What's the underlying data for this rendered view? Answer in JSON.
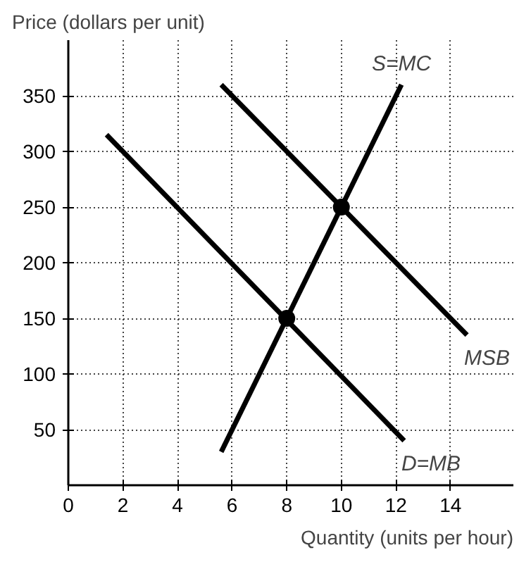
{
  "chart_data": {
    "type": "line",
    "xlabel": "Quantity (units per hour)",
    "ylabel": "Price (dollars per unit)",
    "xlim": [
      0,
      16.3
    ],
    "ylim": [
      0,
      400
    ],
    "xticks": [
      0,
      2,
      4,
      6,
      8,
      10,
      12,
      14
    ],
    "yticks": [
      50,
      100,
      150,
      200,
      250,
      300,
      350
    ],
    "grid": true,
    "line_style": "solid",
    "marker": "none",
    "series": [
      {
        "name": "S=MC",
        "color": "#000000",
        "x": [
          5.6,
          12.2
        ],
        "values": [
          30,
          360
        ]
      },
      {
        "name": "MSB",
        "color": "#000000",
        "x": [
          5.6,
          14.6
        ],
        "values": [
          360,
          135
        ]
      },
      {
        "name": "D=MB",
        "color": "#000000",
        "x": [
          1.4,
          12.3
        ],
        "values": [
          315,
          40
        ]
      },
      {
        "type": "scatter",
        "marker": "circle",
        "color": "#000000",
        "x": [
          8,
          10
        ],
        "values": [
          150,
          250
        ]
      }
    ]
  }
}
